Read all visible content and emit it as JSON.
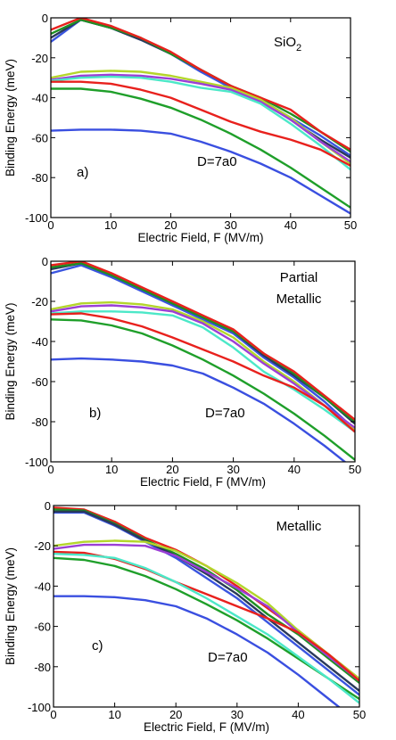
{
  "figure": {
    "background": "#ffffff",
    "series_colors": [
      "#e8211d",
      "#1f8f23",
      "#3a55e0",
      "#2a3a5a",
      "#b3d62b",
      "#9b3fd6",
      "#e8211d",
      "#1f9f2a",
      "#3a4fe0",
      "#4ce8c8"
    ]
  },
  "chart_data": [
    {
      "type": "line",
      "panel": "a)",
      "annotation_label": "D=7a0",
      "title_lines": [
        "SiO",
        "2"
      ],
      "xlabel": "Electric Field, F (MV/m)",
      "ylabel": "Binding Energy (meV)",
      "xlim": [
        0,
        50
      ],
      "ylim": [
        -100,
        0
      ],
      "xticks": [
        0,
        10,
        20,
        30,
        40,
        50
      ],
      "yticks": [
        0,
        -20,
        -40,
        -60,
        -80,
        -100
      ],
      "grid": false,
      "x": [
        0,
        5,
        10,
        15,
        20,
        25,
        30,
        35,
        40,
        45,
        50
      ],
      "series": [
        {
          "color": "#3a55e0",
          "values": [
            -12,
            -1,
            -5,
            -11,
            -18,
            -27,
            -35,
            -41,
            -50,
            -59,
            -69
          ]
        },
        {
          "color": "#2a3a5a",
          "values": [
            -10,
            -1,
            -5,
            -11,
            -18,
            -26,
            -34,
            -41,
            -51,
            -61,
            -70
          ]
        },
        {
          "color": "#1f8f23",
          "values": [
            -8,
            -1,
            -5,
            -10,
            -18,
            -26,
            -34,
            -40,
            -48,
            -57,
            -67
          ]
        },
        {
          "color": "#e8211d",
          "values": [
            -6,
            0,
            -4,
            -10,
            -17,
            -26,
            -34,
            -40,
            -46,
            -57,
            -66
          ]
        },
        {
          "color": "#b3d62b",
          "values": [
            -30,
            -27,
            -26.5,
            -27,
            -29,
            -32,
            -35,
            -41,
            -50,
            -62,
            -73
          ]
        },
        {
          "color": "#9b3fd6",
          "values": [
            -31,
            -29,
            -28.5,
            -29,
            -30.5,
            -33,
            -36,
            -42,
            -51,
            -62,
            -72
          ]
        },
        {
          "color": "#4ce8c8",
          "values": [
            -31.5,
            -30,
            -29.5,
            -30,
            -32,
            -35,
            -37,
            -43,
            -53,
            -64,
            -76
          ]
        },
        {
          "color": "#e8211d",
          "values": [
            -32,
            -32,
            -33,
            -36,
            -40,
            -46,
            -52,
            -57,
            -61,
            -66,
            -74
          ]
        },
        {
          "color": "#1f9f2a",
          "values": [
            -35.5,
            -35.5,
            -37,
            -40.5,
            -45,
            -51,
            -58,
            -66,
            -75,
            -85,
            -95
          ]
        },
        {
          "color": "#3a4fe0",
          "values": [
            -56.5,
            -56,
            -56,
            -56.5,
            -58,
            -62,
            -67,
            -73,
            -80,
            -89,
            -98
          ]
        }
      ]
    },
    {
      "type": "line",
      "panel": "b)",
      "annotation_label": "D=7a0",
      "title_lines": [
        "Partial",
        "Metallic"
      ],
      "xlabel": "Electric Field, F (MV/m)",
      "ylabel": "Binding Energy (meV)",
      "xlim": [
        0,
        50
      ],
      "ylim": [
        -100,
        0
      ],
      "xticks": [
        0,
        10,
        20,
        30,
        40,
        50
      ],
      "yticks": [
        0,
        -20,
        -40,
        -60,
        -80,
        -100
      ],
      "grid": false,
      "x": [
        0,
        5,
        10,
        15,
        20,
        25,
        30,
        35,
        40,
        45,
        50
      ],
      "series": [
        {
          "color": "#3a55e0",
          "values": [
            -6,
            -2,
            -8,
            -15,
            -22,
            -29,
            -36,
            -48,
            -58,
            -70,
            -84
          ]
        },
        {
          "color": "#2a3a5a",
          "values": [
            -4,
            -1,
            -7,
            -14,
            -21,
            -28,
            -35,
            -47,
            -57,
            -68,
            -81
          ]
        },
        {
          "color": "#1f8f23",
          "values": [
            -3,
            -1,
            -7,
            -14,
            -21,
            -28,
            -35,
            -46,
            -56,
            -68,
            -80
          ]
        },
        {
          "color": "#e8211d",
          "values": [
            -2,
            0,
            -6,
            -13,
            -20,
            -27,
            -34,
            -46,
            -55,
            -67,
            -79
          ]
        },
        {
          "color": "#b3d62b",
          "values": [
            -24,
            -21,
            -20.5,
            -21.5,
            -24,
            -30,
            -38,
            -50,
            -60,
            -72,
            -84
          ]
        },
        {
          "color": "#9b3fd6",
          "values": [
            -25,
            -22.5,
            -22,
            -23,
            -25,
            -31,
            -40,
            -51,
            -61,
            -72,
            -83
          ]
        },
        {
          "color": "#4ce8c8",
          "values": [
            -26,
            -25,
            -25,
            -25.5,
            -27,
            -33,
            -43,
            -55,
            -64,
            -74,
            -85
          ]
        },
        {
          "color": "#e8211d",
          "values": [
            -26.5,
            -26,
            -28.5,
            -32.5,
            -38,
            -44,
            -50,
            -57,
            -63,
            -72,
            -85
          ]
        },
        {
          "color": "#1f9f2a",
          "values": [
            -29,
            -29.5,
            -32,
            -36,
            -42,
            -49,
            -57,
            -66,
            -76,
            -87,
            -99
          ]
        },
        {
          "color": "#3a4fe0",
          "values": [
            -49,
            -48.5,
            -49,
            -50,
            -52,
            -56,
            -63,
            -71,
            -81,
            -92,
            -104
          ]
        }
      ]
    },
    {
      "type": "line",
      "panel": "c)",
      "annotation_label": "D=7a0",
      "title_lines": [
        "Metallic"
      ],
      "xlabel": "Electric Field, F (MV/m)",
      "ylabel": "Binding Energy (meV)",
      "xlim": [
        0,
        50
      ],
      "ylim": [
        -100,
        0
      ],
      "xticks": [
        0,
        10,
        20,
        30,
        40,
        50
      ],
      "yticks": [
        0,
        -20,
        -40,
        -60,
        -80,
        -100
      ],
      "grid": false,
      "x": [
        0,
        5,
        10,
        15,
        20,
        25,
        30,
        35,
        40,
        45,
        50
      ],
      "series": [
        {
          "color": "#e8211d",
          "values": [
            -1,
            -2,
            -8,
            -16,
            -22,
            -30,
            -40,
            -51,
            -62,
            -74,
            -86
          ]
        },
        {
          "color": "#1f8f23",
          "values": [
            -2,
            -2.5,
            -9,
            -17,
            -24,
            -32,
            -42,
            -54,
            -64,
            -76,
            -88
          ]
        },
        {
          "color": "#3a55e0",
          "values": [
            -3.5,
            -3.5,
            -10,
            -18,
            -26,
            -36,
            -46,
            -58,
            -70,
            -82,
            -94
          ]
        },
        {
          "color": "#2a3a5a",
          "values": [
            -3,
            -3,
            -9.5,
            -17.5,
            -25,
            -34,
            -44,
            -56,
            -68,
            -80,
            -92
          ]
        },
        {
          "color": "#b3d62b",
          "values": [
            -20,
            -18,
            -17.5,
            -18,
            -22.5,
            -30,
            -38.5,
            -48.5,
            -62,
            -74,
            -86
          ]
        },
        {
          "color": "#9b3fd6",
          "values": [
            -21.5,
            -19.5,
            -19.5,
            -20,
            -25,
            -33,
            -41,
            -50,
            -63,
            -75,
            -87
          ]
        },
        {
          "color": "#e8211d",
          "values": [
            -23,
            -23.5,
            -26.5,
            -31.5,
            -38,
            -44,
            -50,
            -56,
            -63,
            -74,
            -87
          ]
        },
        {
          "color": "#1f9f2a",
          "values": [
            -26,
            -27,
            -30,
            -35,
            -41.5,
            -49,
            -57,
            -66,
            -76,
            -86,
            -96
          ]
        },
        {
          "color": "#4ce8c8",
          "values": [
            -24,
            -24.5,
            -26,
            -31,
            -38,
            -46,
            -55,
            -64,
            -75,
            -86,
            -98
          ]
        },
        {
          "color": "#3a4fe0",
          "values": [
            -45,
            -45,
            -45.5,
            -47,
            -50,
            -56,
            -64,
            -73,
            -84,
            -96,
            -108
          ]
        }
      ]
    }
  ]
}
